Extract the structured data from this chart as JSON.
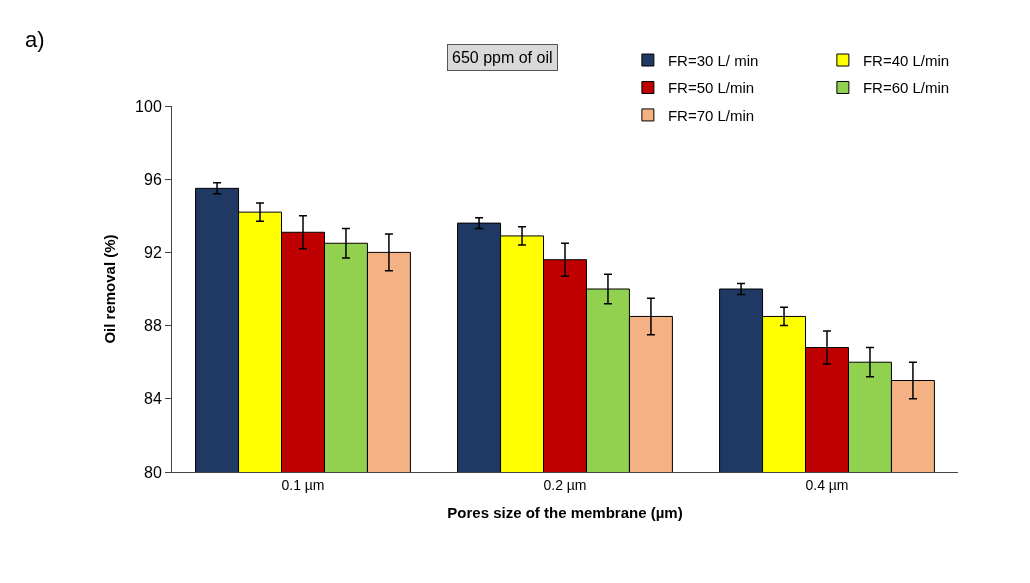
{
  "chart_data": {
    "type": "bar",
    "title": "650 ppm of oil",
    "xlabel": "Pores size of the membrane (µm)",
    "ylabel": "Oil removal (%)",
    "annotations": [
      "a)"
    ],
    "categories": [
      "0.1 µm",
      "0.2 µm",
      "0.4 µm"
    ],
    "series": [
      {
        "name": "FR=30 L/ min",
        "color": "#1f3864",
        "values": [
          95.5,
          93.6,
          90.0
        ],
        "errors": [
          0.3,
          0.3,
          0.3
        ]
      },
      {
        "name": "FR=40 L/min",
        "color": "#ffff00",
        "values": [
          94.2,
          92.9,
          88.5
        ],
        "errors": [
          0.5,
          0.5,
          0.5
        ]
      },
      {
        "name": "FR=50 L/min",
        "color": "#c00000",
        "values": [
          93.1,
          91.6,
          86.8
        ],
        "errors": [
          0.9,
          0.9,
          0.9
        ]
      },
      {
        "name": "FR=60 L/min",
        "color": "#92d050",
        "values": [
          92.5,
          90.0,
          86.0
        ],
        "errors": [
          0.8,
          0.8,
          0.8
        ]
      },
      {
        "name": "FR=70 L/min",
        "color": "#f4b183",
        "values": [
          92.0,
          88.5,
          85.0
        ],
        "errors": [
          1.0,
          1.0,
          1.0
        ]
      }
    ],
    "ylim": [
      80,
      100
    ],
    "yticks": [
      80,
      84,
      88,
      92,
      96,
      100
    ],
    "legend": "top right"
  }
}
